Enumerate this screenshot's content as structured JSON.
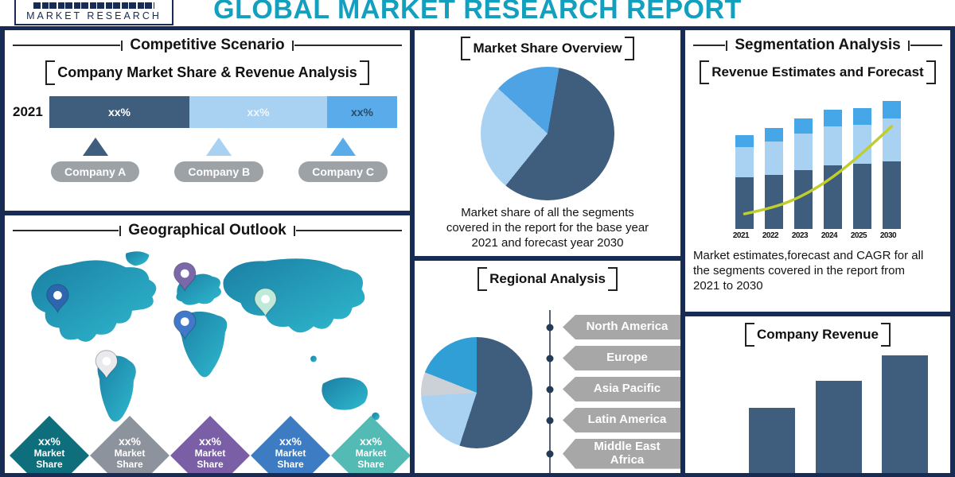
{
  "theme": {
    "navy": "#182b52",
    "teal": "#12a0be",
    "slate": "#3f5d7c",
    "light_blue": "#a9d2f2",
    "bright_blue": "#4da3e4",
    "pill_gray": "#9da2a6",
    "ribbon_gray": "#a7a7a7",
    "line_green": "#bfce2e"
  },
  "header": {
    "logo": "MARKET RESEARCH",
    "title": "GLOBAL MARKET RESEARCH REPORT"
  },
  "panels": {
    "competitive": {
      "title": "Competitive Scenario",
      "subtitle": "Company Market Share & Revenue Analysis",
      "year_label": "2021"
    },
    "geographical": {
      "title": "Geographical Outlook",
      "badges": [
        {
          "value": "xx%",
          "label": "Market Share",
          "color": "#0e6e7c"
        },
        {
          "value": "xx%",
          "label": "Market Share",
          "color": "#8d939c"
        },
        {
          "value": "xx%",
          "label": "Market Share",
          "color": "#7a5fa6"
        },
        {
          "value": "xx%",
          "label": "Market Share",
          "color": "#3d7cc2"
        },
        {
          "value": "xx%",
          "label": "Market Share",
          "color": "#54bab4"
        }
      ],
      "pins": [
        {
          "name": "north-america",
          "color": "#2c66ae"
        },
        {
          "name": "europe",
          "color": "#7a68a8"
        },
        {
          "name": "africa",
          "color": "#4178c8"
        },
        {
          "name": "south-america",
          "color": "#e9e9ee"
        },
        {
          "name": "asia",
          "color": "#bfe9d9"
        }
      ]
    },
    "market_share": {
      "title": "Market Share Overview",
      "caption": "Market share of all the segments covered in the report for the base year 2021 and forecast year 2030"
    },
    "regional": {
      "title": "Regional Analysis",
      "regions": [
        "North America",
        "Europe",
        "Asia Pacific",
        "Latin America",
        "Middle East Africa"
      ]
    },
    "segmentation": {
      "title": "Segmentation Analysis",
      "subtitle": "Revenue Estimates and Forecast",
      "caption": "Market estimates,forecast and CAGR for all the segments covered in the report from 2021 to 2030"
    },
    "company_revenue": {
      "title": "Company Revenue"
    }
  },
  "chart_data": [
    {
      "id": "competitive-bar",
      "type": "bar",
      "orientation": "horizontal-stacked",
      "title": "Company Market Share & Revenue Analysis",
      "categories": [
        "2021"
      ],
      "series": [
        {
          "name": "Company A",
          "value": 42,
          "label": "xx%",
          "color": "#3f5d7c",
          "label_color": "#ffffff"
        },
        {
          "name": "Company B",
          "value": 41,
          "label": "xx%",
          "color": "#a9d2f2",
          "label_color": "#f2f6fa"
        },
        {
          "name": "Company C",
          "value": 17,
          "label": "xx%",
          "color": "#5aabea",
          "label_color": "#2e4a66"
        }
      ]
    },
    {
      "id": "market-share-pie",
      "type": "pie",
      "title": "Market Share Overview",
      "start_angle": 10,
      "slices": [
        {
          "name": "segment-1",
          "value": 58,
          "color": "#3f5d7c"
        },
        {
          "name": "segment-2",
          "value": 26,
          "color": "#a9d2f2"
        },
        {
          "name": "segment-3",
          "value": 16,
          "color": "#4da3e4"
        }
      ]
    },
    {
      "id": "regional-pie",
      "type": "pie",
      "title": "Regional Analysis",
      "start_angle": 0,
      "slices": [
        {
          "name": "slice-1",
          "value": 55,
          "color": "#3f5d7c"
        },
        {
          "name": "slice-2",
          "value": 19,
          "color": "#a9d2f2"
        },
        {
          "name": "slice-3",
          "value": 7,
          "color": "#ccd1d8"
        },
        {
          "name": "slice-4",
          "value": 19,
          "color": "#2f9fd6"
        }
      ]
    },
    {
      "id": "segmentation-bars",
      "type": "bar",
      "stacked": true,
      "title": "Revenue Estimates and Forecast",
      "categories": [
        "2021",
        "2022",
        "2023",
        "2024",
        "2025",
        "2030"
      ],
      "series": [
        {
          "name": "segment-bottom",
          "color": "#3f5d7c",
          "values": [
            34,
            36,
            39,
            42,
            43,
            45
          ]
        },
        {
          "name": "segment-middle",
          "color": "#a9d2f2",
          "values": [
            20,
            22,
            24,
            26,
            26,
            28
          ]
        },
        {
          "name": "segment-top",
          "color": "#45a7e8",
          "values": [
            8,
            9,
            10,
            11,
            11,
            12
          ]
        }
      ],
      "line": {
        "name": "cagr-trend",
        "color": "#bfce2e",
        "values": [
          10,
          14,
          22,
          34,
          50,
          68
        ]
      }
    },
    {
      "id": "company-revenue-bars",
      "type": "bar",
      "title": "Company Revenue",
      "values": [
        41,
        58,
        74
      ],
      "color": "#3f5d7c"
    }
  ]
}
